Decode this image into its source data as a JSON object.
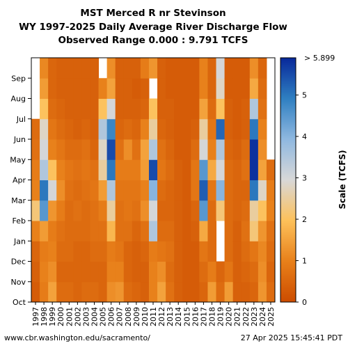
{
  "titles": {
    "line1": "MST Merced R nr Stevinson",
    "line2": "WY 1997-2025 Daily Average River Discharge Flow",
    "line3": "Observed Range 0.000 : 9.791 TCFS"
  },
  "footer": {
    "url": "www.cbr.washington.edu/sacramento/",
    "timestamp": "27 Apr 2025 15:45:41 PDT"
  },
  "chart_data": {
    "type": "heatmap",
    "title": "MST Merced R nr Stevinson",
    "subtitle": "WY 1997-2025 Daily Average River Discharge Flow",
    "x_labels": [
      "1997",
      "1998",
      "1999",
      "2000",
      "2001",
      "2002",
      "2003",
      "2004",
      "2005",
      "2006",
      "2007",
      "2008",
      "2009",
      "2010",
      "2011",
      "2012",
      "2013",
      "2014",
      "2015",
      "2016",
      "2017",
      "2018",
      "2019",
      "2020",
      "2021",
      "2022",
      "2023",
      "2024",
      "2025"
    ],
    "y_labels": [
      "Oct",
      "Nov",
      "Dec",
      "Jan",
      "Feb",
      "Mar",
      "Apr",
      "May",
      "Jun",
      "Jul",
      "Aug",
      "Sep"
    ],
    "colorbar": {
      "label": "Scale (TCFS)",
      "ticks": [
        "0",
        "1",
        "2",
        "3",
        "4",
        "5"
      ],
      "top_label": "> 5.899",
      "range": [
        0,
        5.899
      ],
      "colors": [
        "#cc4c00",
        "#e8801a",
        "#fdc15a",
        "#d8d8d8",
        "#8fb8e0",
        "#2f7fc1",
        "#08289a"
      ]
    },
    "series_monthly_tcfs": {
      "1997": [
        0.3,
        0.4,
        0.5,
        1.0,
        2.2,
        1.0,
        0.9,
        0.7,
        0.6,
        null,
        null,
        null
      ],
      "1998": [
        0.9,
        1.0,
        0.9,
        1.4,
        4.5,
        5.0,
        3.5,
        3.0,
        2.8,
        2.0,
        1.4,
        1.1
      ],
      "1999": [
        1.5,
        1.2,
        1.0,
        0.9,
        1.3,
        3.0,
        2.0,
        1.0,
        0.8,
        0.6,
        0.5,
        0.5
      ],
      "2000": [
        0.6,
        0.5,
        0.6,
        0.7,
        0.9,
        1.2,
        1.0,
        0.8,
        0.6,
        0.5,
        0.4,
        0.4
      ],
      "2001": [
        0.6,
        0.5,
        0.6,
        0.6,
        0.6,
        0.7,
        0.8,
        0.6,
        0.5,
        0.4,
        0.4,
        0.4
      ],
      "2002": [
        0.5,
        0.5,
        0.5,
        0.6,
        0.7,
        0.6,
        0.7,
        0.6,
        0.4,
        0.4,
        0.4,
        0.4
      ],
      "2003": [
        0.6,
        0.5,
        0.5,
        0.6,
        0.6,
        0.7,
        0.8,
        0.7,
        0.5,
        0.4,
        0.4,
        0.4
      ],
      "2004": [
        0.6,
        0.5,
        0.6,
        0.7,
        0.7,
        0.8,
        0.7,
        0.5,
        0.4,
        0.4,
        0.4,
        0.4
      ],
      "2005": [
        0.5,
        0.5,
        0.6,
        0.7,
        0.9,
        1.4,
        2.5,
        2.8,
        3.5,
        2.0,
        1.0,
        null
      ],
      "2006": [
        1.2,
        1.0,
        0.9,
        1.8,
        2.5,
        3.5,
        5.0,
        5.5,
        4.8,
        3.0,
        1.5,
        1.2
      ],
      "2007": [
        1.3,
        1.0,
        0.8,
        0.7,
        0.7,
        0.8,
        0.9,
        0.7,
        0.5,
        0.4,
        0.4,
        0.4
      ],
      "2008": [
        0.6,
        0.5,
        0.5,
        0.7,
        0.8,
        0.8,
        0.9,
        1.2,
        0.6,
        0.4,
        0.4,
        0.4
      ],
      "2009": [
        0.5,
        0.4,
        0.4,
        0.5,
        0.7,
        0.8,
        0.9,
        0.7,
        0.5,
        0.4,
        0.3,
        0.4
      ],
      "2010": [
        0.4,
        0.4,
        0.5,
        0.7,
        1.2,
        1.0,
        1.4,
        1.5,
        1.0,
        0.5,
        0.4,
        0.9
      ],
      "2011": [
        1.0,
        1.0,
        0.9,
        3.5,
        3.0,
        4.0,
        5.5,
        3.5,
        2.5,
        2.0,
        null,
        1.3
      ],
      "2012": [
        1.5,
        1.2,
        0.8,
        0.6,
        0.5,
        0.6,
        0.8,
        0.7,
        0.5,
        0.4,
        0.4,
        0.4
      ],
      "2013": [
        0.7,
        0.6,
        0.7,
        0.6,
        0.5,
        0.5,
        0.6,
        0.5,
        0.4,
        0.4,
        0.3,
        0.3
      ],
      "2014": [
        0.4,
        0.4,
        0.4,
        0.4,
        0.4,
        0.4,
        0.4,
        0.3,
        0.3,
        0.3,
        0.3,
        0.3
      ],
      "2015": [
        0.3,
        0.3,
        0.3,
        0.3,
        0.3,
        0.3,
        0.3,
        0.3,
        0.3,
        0.3,
        0.3,
        0.3
      ],
      "2016": [
        0.3,
        0.3,
        0.3,
        0.4,
        0.5,
        0.8,
        0.8,
        0.6,
        0.4,
        0.3,
        0.3,
        0.3
      ],
      "2017": [
        0.5,
        0.6,
        0.8,
        1.6,
        4.5,
        5.3,
        4.5,
        3.0,
        2.5,
        1.5,
        1.0,
        1.0
      ],
      "2018": [
        1.4,
        0.9,
        0.6,
        0.6,
        0.6,
        0.8,
        1.6,
        1.0,
        0.8,
        0.6,
        0.5,
        0.5
      ],
      "2019": [
        0.6,
        0.5,
        null,
        null,
        2.2,
        4.0,
        3.0,
        3.5,
        5.2,
        2.0,
        2.8,
        3.0
      ],
      "2020": [
        1.4,
        0.8,
        0.6,
        0.6,
        0.6,
        0.6,
        0.6,
        0.5,
        0.4,
        0.4,
        0.3,
        0.3
      ],
      "2021": [
        0.4,
        0.4,
        0.4,
        0.4,
        0.5,
        0.5,
        0.5,
        0.4,
        0.3,
        0.3,
        0.3,
        0.3
      ],
      "2022": [
        0.4,
        0.5,
        0.6,
        0.7,
        0.6,
        0.5,
        0.7,
        0.6,
        0.4,
        0.4,
        0.3,
        0.3
      ],
      "2023": [
        0.5,
        0.6,
        0.8,
        2.2,
        2.5,
        5.0,
        5.8,
        5.8,
        5.0,
        3.5,
        1.6,
        1.2
      ],
      "2024": [
        1.3,
        1.2,
        1.1,
        1.3,
        2.0,
        2.8,
        1.5,
        1.2,
        1.0,
        0.7,
        0.6,
        0.5
      ],
      "2025": [
        0.6,
        0.5,
        0.6,
        0.7,
        1.0,
        0.9,
        0.6,
        null,
        null,
        null,
        null,
        null
      ]
    }
  }
}
